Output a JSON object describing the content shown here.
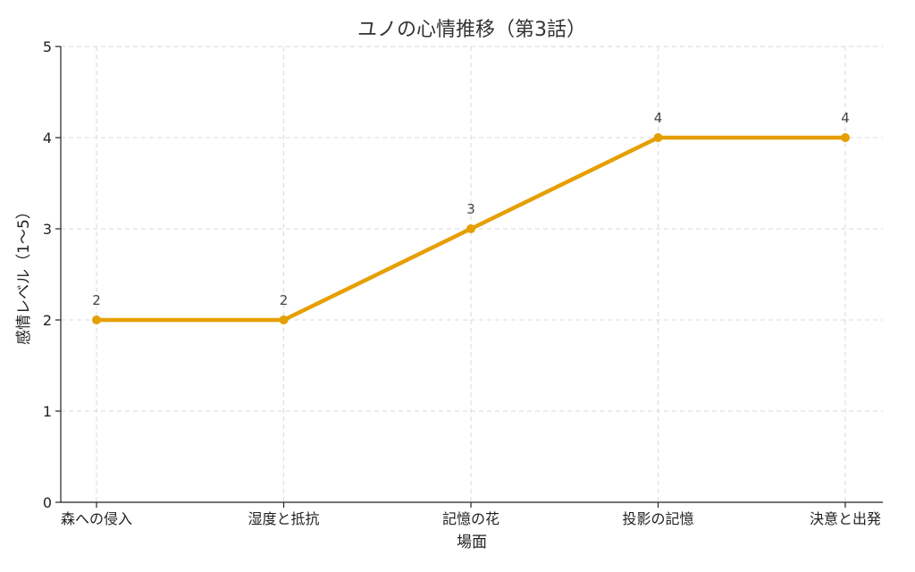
{
  "chart_data": {
    "type": "line",
    "title": "ユノの心情推移（第3話）",
    "xlabel": "場面",
    "ylabel": "感情レベル（1〜5）",
    "categories": [
      "森への侵入",
      "湿度と抵抗",
      "記憶の花",
      "投影の記憶",
      "決意と出発"
    ],
    "series": [
      {
        "values": [
          2,
          2,
          3,
          4,
          4
        ]
      }
    ],
    "data_labels": [
      "2",
      "2",
      "3",
      "4",
      "4"
    ],
    "ylim": [
      0,
      5
    ],
    "yticks": [
      "0",
      "1",
      "2",
      "3",
      "4",
      "5"
    ],
    "grid": true,
    "legend": "none",
    "colors": {
      "series": "#e69f00",
      "grid": "#d9d9d9",
      "axis": "#222222"
    }
  }
}
